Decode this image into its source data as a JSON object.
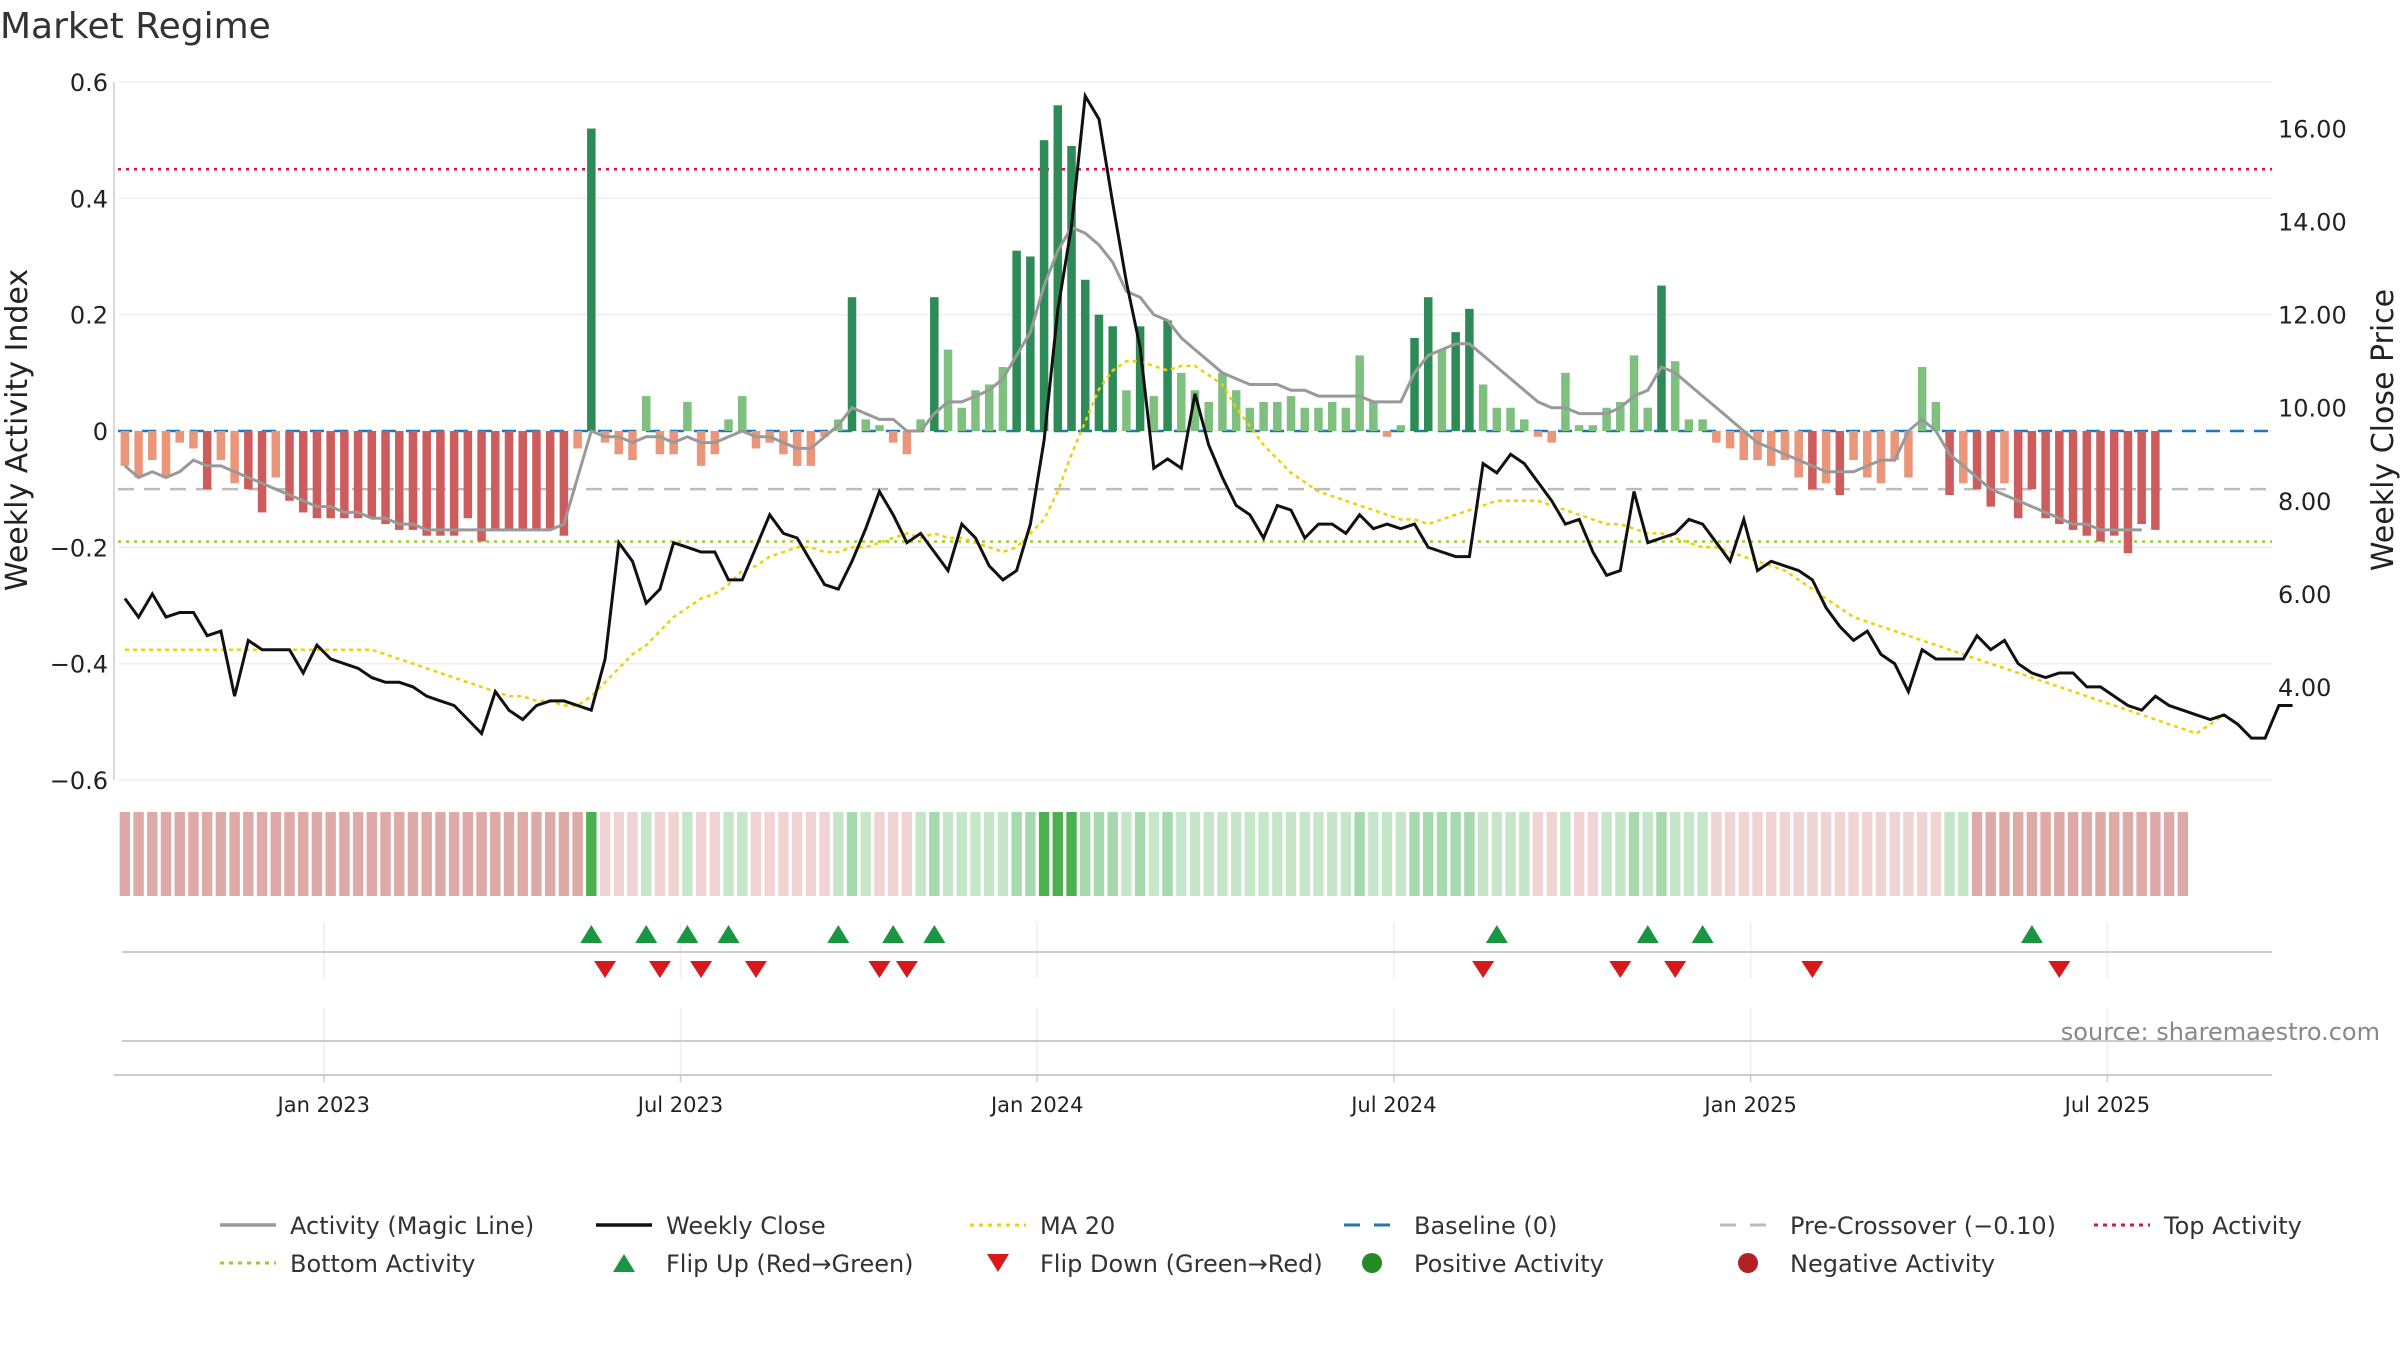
{
  "title": "Market Regime",
  "source": "source: sharemaestro.com",
  "colors": {
    "pos_dark": "#2e8b57",
    "pos_light": "#7fbf7f",
    "neg_dark": "#cd5c5c",
    "neg_light": "#e9967a",
    "magic_line": "#999999",
    "close_line": "#111111",
    "ma20": "#f0d000",
    "baseline": "#1f77b4",
    "pre_cross": "#bbbbbb",
    "top": "#dc143c",
    "bottom": "#9acd32",
    "flip_up": "#1a9641",
    "flip_down": "#d7191c"
  },
  "chart_data": {
    "type": "bar",
    "title": "Market Regime",
    "ylabel_left": "Weekly Activity Index",
    "ylabel_right": "Weekly Close Price",
    "y_left_range": [
      -0.6,
      0.6
    ],
    "y_right_range": [
      2.0,
      17.0
    ],
    "y_left_ticks": [
      "0.6",
      "0.4",
      "0.2",
      "0",
      "−0.2",
      "−0.4",
      "−0.6"
    ],
    "y_right_ticks": [
      "16.00",
      "14.00",
      "12.00",
      "10.00",
      "8.00",
      "6.00",
      "4.00"
    ],
    "x_ticks": [
      "Jan 2023",
      "Jul 2023",
      "Jan 2024",
      "Jul 2024",
      "Jan 2025",
      "Jul 2025"
    ],
    "x_tick_weeks": [
      15,
      41,
      67,
      93,
      119,
      145
    ],
    "num_weeks": 157,
    "reference_lines": {
      "top": 0.45,
      "bottom": -0.19,
      "pre_crossover": -0.1,
      "baseline": 0
    },
    "activity": [
      -0.06,
      -0.08,
      -0.05,
      -0.08,
      -0.02,
      -0.03,
      -0.1,
      -0.05,
      -0.09,
      -0.1,
      -0.14,
      -0.08,
      -0.12,
      -0.14,
      -0.15,
      -0.15,
      -0.15,
      -0.15,
      -0.15,
      -0.16,
      -0.17,
      -0.17,
      -0.18,
      -0.18,
      -0.18,
      -0.15,
      -0.19,
      -0.17,
      -0.17,
      -0.17,
      -0.17,
      -0.17,
      -0.18,
      -0.03,
      0.52,
      -0.02,
      -0.04,
      -0.05,
      0.06,
      -0.04,
      -0.04,
      0.05,
      -0.06,
      -0.04,
      0.02,
      0.06,
      -0.03,
      -0.02,
      -0.04,
      -0.06,
      -0.06,
      -0.01,
      0.02,
      0.23,
      0.02,
      0.01,
      -0.02,
      -0.04,
      0.02,
      0.23,
      0.14,
      0.04,
      0.07,
      0.08,
      0.11,
      0.31,
      0.3,
      0.5,
      0.56,
      0.49,
      0.26,
      0.2,
      0.18,
      0.07,
      0.18,
      0.06,
      0.19,
      0.1,
      0.07,
      0.05,
      0.1,
      0.07,
      0.04,
      0.05,
      0.05,
      0.06,
      0.04,
      0.04,
      0.05,
      0.04,
      0.13,
      0.05,
      -0.01,
      0.01,
      0.16,
      0.23,
      0.14,
      0.17,
      0.21,
      0.08,
      0.04,
      0.04,
      0.02,
      -0.01,
      -0.02,
      0.1,
      0.01,
      0.01,
      0.04,
      0.05,
      0.13,
      0.04,
      0.25,
      0.12,
      0.02,
      0.02,
      -0.02,
      -0.03,
      -0.05,
      -0.05,
      -0.06,
      -0.05,
      -0.08,
      -0.1,
      -0.09,
      -0.11,
      -0.05,
      -0.08,
      -0.09,
      -0.05,
      -0.08,
      0.11,
      0.05,
      -0.11,
      -0.09,
      -0.1,
      -0.13,
      -0.09,
      -0.15,
      -0.1,
      -0.15,
      -0.16,
      -0.17,
      -0.18,
      -0.19,
      -0.18,
      -0.21,
      -0.16,
      -0.17,
      0,
      0,
      0,
      0,
      0,
      0,
      0,
      0
    ],
    "magic_line": [
      -0.06,
      -0.08,
      -0.07,
      -0.08,
      -0.07,
      -0.05,
      -0.06,
      -0.06,
      -0.07,
      -0.08,
      -0.09,
      -0.1,
      -0.11,
      -0.12,
      -0.13,
      -0.13,
      -0.14,
      -0.14,
      -0.15,
      -0.15,
      -0.16,
      -0.16,
      -0.17,
      -0.17,
      -0.17,
      -0.17,
      -0.17,
      -0.17,
      -0.17,
      -0.17,
      -0.17,
      -0.17,
      -0.16,
      -0.08,
      0.0,
      -0.01,
      -0.01,
      -0.02,
      -0.01,
      -0.01,
      -0.02,
      -0.01,
      -0.02,
      -0.02,
      -0.01,
      0.0,
      -0.01,
      -0.01,
      -0.02,
      -0.03,
      -0.03,
      -0.01,
      0.01,
      0.04,
      0.03,
      0.02,
      0.02,
      0.0,
      0.0,
      0.03,
      0.05,
      0.05,
      0.06,
      0.07,
      0.09,
      0.13,
      0.17,
      0.25,
      0.31,
      0.35,
      0.34,
      0.32,
      0.29,
      0.24,
      0.23,
      0.2,
      0.19,
      0.16,
      0.14,
      0.12,
      0.1,
      0.09,
      0.08,
      0.08,
      0.08,
      0.07,
      0.07,
      0.06,
      0.06,
      0.06,
      0.06,
      0.05,
      0.05,
      0.05,
      0.1,
      0.13,
      0.14,
      0.15,
      0.15,
      0.13,
      0.11,
      0.09,
      0.07,
      0.05,
      0.04,
      0.04,
      0.03,
      0.03,
      0.03,
      0.04,
      0.06,
      0.07,
      0.11,
      0.1,
      0.08,
      0.06,
      0.04,
      0.02,
      0.0,
      -0.02,
      -0.03,
      -0.04,
      -0.05,
      -0.06,
      -0.07,
      -0.07,
      -0.07,
      -0.06,
      -0.05,
      -0.05,
      0.0,
      0.02,
      0.0,
      -0.04,
      -0.06,
      -0.08,
      -0.1,
      -0.11,
      -0.12,
      -0.13,
      -0.14,
      -0.15,
      -0.16,
      -0.16,
      -0.17,
      -0.17,
      -0.17,
      -0.17,
      null,
      null,
      null,
      null,
      null,
      null,
      null,
      null
    ],
    "weekly_close": [
      5.9,
      5.5,
      6.0,
      5.5,
      5.6,
      5.6,
      5.1,
      5.2,
      3.8,
      5.0,
      4.8,
      4.8,
      4.8,
      4.3,
      4.9,
      4.6,
      4.5,
      4.4,
      4.2,
      4.1,
      4.1,
      4.0,
      3.8,
      3.7,
      3.6,
      3.3,
      3.0,
      3.9,
      3.5,
      3.3,
      3.6,
      3.7,
      3.7,
      3.6,
      3.5,
      4.6,
      7.1,
      6.7,
      5.8,
      6.1,
      7.1,
      7.0,
      6.9,
      6.9,
      6.3,
      6.3,
      7.0,
      7.7,
      7.3,
      7.2,
      6.7,
      6.2,
      6.1,
      6.7,
      7.4,
      8.2,
      7.7,
      7.1,
      7.3,
      6.9,
      6.5,
      7.5,
      7.2,
      6.6,
      6.3,
      6.5,
      7.5,
      9.3,
      12.1,
      13.9,
      16.7,
      16.2,
      14.4,
      12.7,
      11.3,
      8.7,
      8.9,
      8.7,
      10.3,
      9.2,
      8.5,
      7.9,
      7.7,
      7.2,
      7.9,
      7.8,
      7.2,
      7.5,
      7.5,
      7.3,
      7.7,
      7.4,
      7.5,
      7.4,
      7.5,
      7.0,
      6.9,
      6.8,
      6.8,
      8.8,
      8.6,
      9.0,
      8.8,
      8.4,
      8.0,
      7.5,
      7.6,
      6.9,
      6.4,
      6.5,
      8.2,
      7.1,
      7.2,
      7.3,
      7.6,
      7.5,
      7.1,
      6.7,
      7.6,
      6.5,
      6.7,
      6.6,
      6.5,
      6.3,
      5.7,
      5.3,
      5.0,
      5.2,
      4.7,
      4.5,
      3.9,
      4.8,
      4.6,
      4.6,
      4.6,
      5.1,
      4.8,
      5.0,
      4.5,
      4.3,
      4.2,
      4.3,
      4.3,
      4.0,
      4.0,
      3.8,
      3.6,
      3.5,
      3.8,
      3.6,
      3.5,
      3.4,
      3.3,
      3.4,
      3.2,
      2.9,
      2.9,
      3.6,
      3.6
    ],
    "ma20": [
      4.8,
      4.8,
      4.8,
      4.8,
      4.8,
      4.8,
      4.8,
      4.8,
      4.8,
      4.8,
      4.8,
      4.8,
      4.8,
      4.8,
      4.8,
      4.8,
      4.8,
      4.8,
      4.8,
      4.7,
      4.6,
      4.5,
      4.4,
      4.3,
      4.2,
      4.1,
      4.0,
      3.9,
      3.8,
      3.8,
      3.7,
      3.7,
      3.6,
      3.6,
      3.8,
      4.1,
      4.4,
      4.7,
      4.9,
      5.2,
      5.5,
      5.7,
      5.9,
      6.0,
      6.2,
      6.5,
      6.6,
      6.8,
      6.9,
      7.0,
      7.0,
      6.9,
      6.9,
      7.0,
      7.0,
      7.1,
      7.2,
      7.3,
      7.2,
      7.3,
      7.2,
      7.2,
      7.1,
      7.0,
      6.9,
      7.0,
      7.3,
      7.6,
      8.2,
      9.0,
      9.7,
      10.4,
      10.8,
      11.0,
      11.0,
      10.9,
      10.8,
      10.9,
      10.9,
      10.7,
      10.5,
      10.0,
      9.6,
      9.2,
      8.9,
      8.6,
      8.4,
      8.2,
      8.1,
      8.0,
      7.9,
      7.8,
      7.7,
      7.6,
      7.6,
      7.5,
      7.6,
      7.7,
      7.8,
      7.9,
      8.0,
      8.0,
      8.0,
      8.0,
      7.9,
      7.8,
      7.7,
      7.6,
      7.5,
      7.5,
      7.4,
      7.3,
      7.3,
      7.2,
      7.1,
      7.0,
      7.0,
      6.9,
      6.8,
      6.7,
      6.6,
      6.5,
      6.3,
      6.1,
      5.9,
      5.7,
      5.5,
      5.4,
      5.3,
      5.2,
      5.1,
      5.0,
      4.9,
      4.8,
      4.7,
      4.6,
      4.5,
      4.4,
      4.3,
      4.2,
      4.1,
      4.0,
      3.9,
      3.8,
      3.7,
      3.6,
      3.5,
      3.4,
      3.3,
      3.2,
      3.1,
      3.0,
      3.2,
      3.4
    ],
    "regime_strip": [
      -2,
      -2,
      -2,
      -2,
      -2,
      -2,
      -2,
      -2,
      -2,
      -2,
      -2,
      -2,
      -2,
      -2,
      -2,
      -2,
      -2,
      -2,
      -2,
      -2,
      -2,
      -2,
      -2,
      -2,
      -2,
      -2,
      -2,
      -2,
      -2,
      -2,
      -2,
      -2,
      -2,
      -2,
      3,
      -1,
      -1,
      -1,
      1,
      -1,
      -1,
      1,
      -1,
      -1,
      1,
      1,
      -1,
      -1,
      -1,
      -1,
      -1,
      -1,
      1,
      2,
      1,
      -1,
      -1,
      -1,
      1,
      2,
      1,
      1,
      1,
      1,
      1,
      2,
      2,
      3,
      3,
      3,
      2,
      2,
      2,
      1,
      2,
      1,
      2,
      1,
      1,
      1,
      1,
      1,
      1,
      1,
      1,
      1,
      1,
      1,
      1,
      1,
      2,
      1,
      1,
      1,
      2,
      2,
      2,
      2,
      2,
      1,
      1,
      1,
      1,
      -1,
      -1,
      1,
      -1,
      -1,
      1,
      1,
      2,
      1,
      2,
      1,
      1,
      1,
      -1,
      -1,
      -1,
      -1,
      -1,
      -1,
      -1,
      -1,
      -1,
      -1,
      -1,
      -1,
      -1,
      -1,
      -1,
      -1,
      -1,
      1,
      1,
      -2,
      -2,
      -2,
      -2,
      -2,
      -2,
      -2,
      -2,
      -2,
      -2,
      -2,
      -2,
      -2,
      -2,
      -2,
      -2
    ],
    "flip_up_weeks": [
      34,
      38,
      41,
      44,
      52,
      56,
      59,
      100,
      111,
      115,
      139
    ],
    "flip_down_weeks": [
      35,
      39,
      42,
      46,
      55,
      57,
      99,
      109,
      113,
      123,
      141
    ]
  },
  "legend": [
    {
      "label": "Activity (Magic Line)",
      "marker": "line-solid",
      "color": "#999999"
    },
    {
      "label": "Weekly Close",
      "marker": "line-solid",
      "color": "#111111"
    },
    {
      "label": "MA 20",
      "marker": "line-dotted",
      "color": "#f0d000"
    },
    {
      "label": "Baseline (0)",
      "marker": "line-dashed",
      "color": "#1f77b4"
    },
    {
      "label": "Pre-Crossover (−0.10)",
      "marker": "line-dashed",
      "color": "#bbbbbb"
    },
    {
      "label": "Top Activity",
      "marker": "line-dotted",
      "color": "#dc143c"
    },
    {
      "label": "Bottom Activity",
      "marker": "line-dotted",
      "color": "#9acd32"
    },
    {
      "label": "Flip Up (Red→Green)",
      "marker": "triangle-up",
      "color": "#1a9641"
    },
    {
      "label": "Flip Down (Green→Red)",
      "marker": "triangle-down",
      "color": "#d7191c"
    },
    {
      "label": "Positive Activity",
      "marker": "circle",
      "color": "#228b22"
    },
    {
      "label": "Negative Activity",
      "marker": "circle",
      "color": "#b22222"
    }
  ]
}
